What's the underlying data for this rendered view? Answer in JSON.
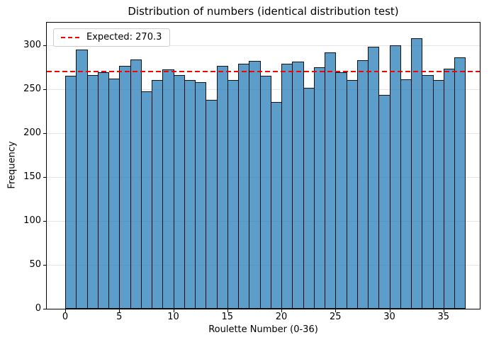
{
  "chart_data": {
    "type": "bar",
    "title": "Distribution of numbers (identical distribution test)",
    "xlabel": "Roulette Number (0-36)",
    "ylabel": "Frequency",
    "categories": [
      0,
      1,
      2,
      3,
      4,
      5,
      6,
      7,
      8,
      9,
      10,
      11,
      12,
      13,
      14,
      15,
      16,
      17,
      18,
      19,
      20,
      21,
      22,
      23,
      24,
      25,
      26,
      27,
      28,
      29,
      30,
      31,
      32,
      33,
      34,
      35,
      36
    ],
    "values": [
      265,
      295,
      266,
      269,
      262,
      276,
      284,
      247,
      260,
      272,
      266,
      260,
      258,
      238,
      276,
      260,
      279,
      282,
      265,
      235,
      279,
      281,
      251,
      275,
      292,
      269,
      260,
      283,
      298,
      243,
      300,
      261,
      308,
      266,
      260,
      273,
      286
    ],
    "expected_line": {
      "value": 270.3,
      "label": "Expected: 270.3",
      "color": "#ff0000",
      "style": "dashed"
    },
    "x_ticks": [
      0,
      5,
      10,
      15,
      20,
      25,
      30,
      35
    ],
    "y_ticks": [
      0,
      50,
      100,
      150,
      200,
      250,
      300
    ],
    "xlim": [
      -1.7,
      38.3
    ],
    "ylim": [
      0,
      325.5
    ],
    "bar_color": "#5e9dc9",
    "bar_edge_color": "#000000",
    "grid": "horizontal-only",
    "grid_color": "#e4e4e4",
    "legend_position": "upper-left",
    "background": "#ffffff"
  }
}
